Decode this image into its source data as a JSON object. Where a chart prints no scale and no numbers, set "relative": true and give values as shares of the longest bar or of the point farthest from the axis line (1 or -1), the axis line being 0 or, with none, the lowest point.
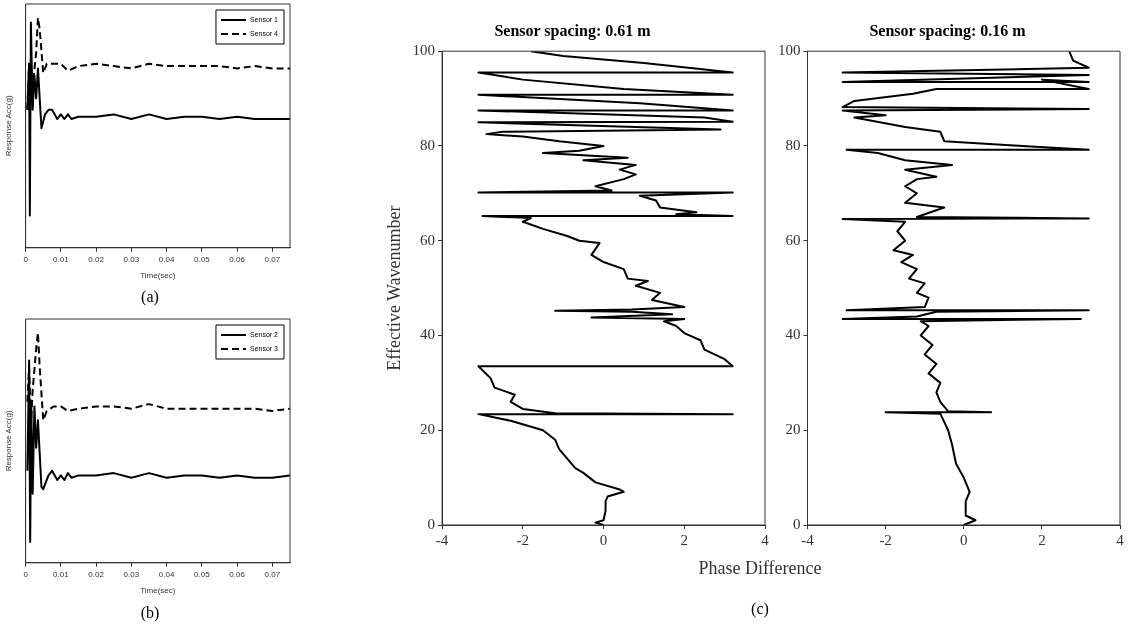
{
  "chart_data": [
    {
      "type": "line",
      "xlabel": "Time(sec)",
      "ylabel": "Response Acc(g)",
      "relative": true,
      "xlim": [
        0,
        0.075
      ],
      "xticks": [
        0,
        0.01,
        0.02,
        0.03,
        0.04,
        0.05,
        0.06,
        0.07
      ],
      "legend": "top right",
      "grid": false,
      "annotations": [
        "(a)"
      ],
      "series": [
        {
          "name": "Sensor 1",
          "color": "#000000",
          "line_style": "solid",
          "x": [
            0.0005,
            0.001,
            0.0012,
            0.0015,
            0.002,
            0.0025,
            0.003,
            0.0035,
            0.0045,
            0.0055,
            0.0065,
            0.0075,
            0.009,
            0.01,
            0.011,
            0.012,
            0.013,
            0.015,
            0.02,
            0.025,
            0.03,
            0.035,
            0.04,
            0.045,
            0.05,
            0.055,
            0.06,
            0.065,
            0.07,
            0.075
          ],
          "values": [
            0.6,
            0.8,
            0.14,
            0.98,
            0.6,
            0.75,
            0.65,
            0.78,
            0.52,
            0.58,
            0.6,
            0.6,
            0.56,
            0.58,
            0.56,
            0.58,
            0.56,
            0.57,
            0.57,
            0.58,
            0.56,
            0.58,
            0.56,
            0.57,
            0.57,
            0.56,
            0.57,
            0.56,
            0.56,
            0.56
          ]
        },
        {
          "name": "Sensor 4",
          "color": "#000000",
          "line_style": "dashed",
          "x": [
            0.0005,
            0.001,
            0.0015,
            0.002,
            0.003,
            0.0035,
            0.004,
            0.005,
            0.006,
            0.008,
            0.01,
            0.012,
            0.015,
            0.02,
            0.025,
            0.03,
            0.035,
            0.04,
            0.045,
            0.05,
            0.055,
            0.06,
            0.065,
            0.07,
            0.075
          ],
          "values": [
            0.6,
            0.8,
            0.65,
            0.7,
            0.85,
            1,
            0.95,
            0.76,
            0.8,
            0.8,
            0.8,
            0.77,
            0.79,
            0.8,
            0.79,
            0.78,
            0.8,
            0.79,
            0.79,
            0.79,
            0.79,
            0.78,
            0.79,
            0.78,
            0.78
          ]
        }
      ]
    },
    {
      "type": "line",
      "xlabel": "Time(sec)",
      "ylabel": "Response Acc(g)",
      "relative": true,
      "xlim": [
        0,
        0.075
      ],
      "xticks": [
        0,
        0.01,
        0.02,
        0.03,
        0.04,
        0.05,
        0.06,
        0.07
      ],
      "legend": "top right",
      "grid": false,
      "annotations": [
        "(b)"
      ],
      "series": [
        {
          "name": "Sensor 2",
          "color": "#000000",
          "line_style": "solid",
          "x": [
            0.0005,
            0.001,
            0.0013,
            0.0016,
            0.002,
            0.0025,
            0.003,
            0.0035,
            0.0045,
            0.005,
            0.0065,
            0.0075,
            0.009,
            0.01,
            0.011,
            0.012,
            0.013,
            0.015,
            0.02,
            0.025,
            0.03,
            0.035,
            0.04,
            0.045,
            0.05,
            0.055,
            0.06,
            0.065,
            0.07,
            0.075
          ],
          "values": [
            0.4,
            0.88,
            0.09,
            0.7,
            0.3,
            0.68,
            0.5,
            0.62,
            0.33,
            0.32,
            0.38,
            0.4,
            0.36,
            0.38,
            0.36,
            0.39,
            0.37,
            0.38,
            0.38,
            0.39,
            0.37,
            0.39,
            0.37,
            0.38,
            0.38,
            0.37,
            0.38,
            0.37,
            0.37,
            0.38
          ]
        },
        {
          "name": "Sensor 3",
          "color": "#000000",
          "line_style": "dashed",
          "x": [
            0.0005,
            0.001,
            0.0015,
            0.002,
            0.003,
            0.0035,
            0.004,
            0.005,
            0.006,
            0.008,
            0.01,
            0.012,
            0.015,
            0.02,
            0.025,
            0.03,
            0.035,
            0.04,
            0.045,
            0.05,
            0.055,
            0.06,
            0.065,
            0.07,
            0.075
          ],
          "values": [
            0.7,
            0.85,
            0.6,
            0.75,
            0.93,
            1,
            0.85,
            0.62,
            0.66,
            0.68,
            0.68,
            0.66,
            0.67,
            0.68,
            0.68,
            0.67,
            0.69,
            0.67,
            0.67,
            0.67,
            0.67,
            0.67,
            0.67,
            0.66,
            0.67
          ]
        }
      ]
    },
    {
      "type": "line",
      "title": "Sensor spacing: 0.61 m",
      "xlabel": "Phase Difference",
      "ylabel": "Effective Wavenumber",
      "xlim": [
        -4,
        4
      ],
      "xticks": [
        -4,
        -2,
        0,
        2,
        4
      ],
      "ylim": [
        0,
        100
      ],
      "yticks": [
        0,
        20,
        40,
        60,
        80,
        100
      ],
      "grid": false,
      "annotations": [
        "(c)"
      ],
      "series": [
        {
          "color": "#000000",
          "x": [
            0,
            -0.2,
            0,
            0.05,
            0.05,
            0.1,
            0.5,
            0.4,
            -0.2,
            -0.5,
            -0.7,
            -0.9,
            -1.1,
            -1.2,
            -1.5,
            -2.3,
            -3.1,
            3.2,
            -1.2,
            -2,
            -2.3,
            -2.2,
            -2.7,
            -2.8,
            -3.1,
            3.2,
            3,
            2.5,
            2.4,
            2.0,
            1.8,
            1.5,
            2,
            -0.3,
            1.7,
            0.7,
            -1.2,
            0.7,
            2.0,
            1.2,
            1.4,
            0.8,
            1.1,
            0.6,
            0.5,
            0,
            -0.3,
            -0.1,
            -0.6,
            -0.9,
            -1.5,
            -2.0,
            -1.8,
            -3.0,
            3.2,
            1.8,
            2.3,
            1.4,
            1.3,
            0.9,
            3.2,
            -3.1,
            0.2,
            -0.2,
            0.5,
            0.8,
            0.4,
            0.8,
            -0.5,
            0.6,
            -1.5,
            -0.6,
            0,
            -1.1,
            -2,
            -2.9,
            -2.5,
            2.9,
            -3.1,
            3.2,
            2.5,
            -3.1,
            3.2,
            1.7,
            0.9,
            -3.1,
            3.2,
            0.5,
            -2,
            -3.1,
            3.2,
            1,
            -1,
            -1.8
          ],
          "values": [
            0,
            0.5,
            1,
            3,
            5,
            6,
            7,
            7.5,
            9,
            11,
            12,
            14,
            16,
            18,
            20,
            22,
            23.4,
            23.4,
            23.6,
            24.5,
            26,
            27.5,
            29,
            31,
            33.5,
            33.5,
            35,
            37,
            39,
            40.5,
            42,
            43,
            43.5,
            43.8,
            44.5,
            45,
            45.2,
            45.5,
            46,
            47.5,
            49,
            50.5,
            51.5,
            52,
            54,
            55.5,
            57,
            59.5,
            60,
            61,
            62.5,
            64,
            64.8,
            65.2,
            65.2,
            65.6,
            66,
            67,
            68.5,
            69.5,
            70.2,
            70.2,
            70.6,
            71.5,
            73,
            74,
            75,
            76,
            77,
            77.5,
            78.5,
            79,
            80,
            81,
            82,
            82.5,
            83,
            83.5,
            85,
            85.1,
            86,
            87.5,
            87.5,
            88.5,
            89,
            90.8,
            90.8,
            92,
            94,
            95.5,
            95.5,
            97.5,
            99,
            100
          ]
        }
      ]
    },
    {
      "type": "line",
      "title": "Sensor spacing: 0.16 m",
      "xlim": [
        -4,
        4
      ],
      "xticks": [
        -4,
        -2,
        0,
        2,
        4
      ],
      "ylim": [
        0,
        100
      ],
      "yticks": [
        0,
        20,
        40,
        60,
        80,
        100
      ],
      "grid": false,
      "series": [
        {
          "color": "#000000",
          "x": [
            0,
            0.3,
            0.05,
            0.05,
            0.15,
            0,
            -0.2,
            -0.3,
            -0.4,
            -0.6,
            -2,
            0.7,
            -0.4,
            -0.6,
            -0.7,
            -0.6,
            -0.9,
            -0.7,
            -1,
            -0.8,
            -1.1,
            -0.9,
            -1.1,
            3,
            -3.1,
            -1.2,
            -0.7,
            3.2,
            -3,
            -1.0,
            -0.9,
            -1.2,
            -1.0,
            -1.4,
            -1.2,
            -1.6,
            -1.3,
            -1.8,
            -1.5,
            -1.7,
            -1.5,
            -3.1,
            3.2,
            -1.2,
            -0.5,
            -1.5,
            -1.2,
            -1.5,
            -1.2,
            -0.7,
            -1.5,
            -0.3,
            -1.5,
            -2.2,
            -3,
            3.2,
            1.5,
            -0.5,
            -0.6,
            -1.5,
            -2.8,
            -2,
            -3.1,
            3.2,
            -3.1,
            -2.8,
            -1.3,
            -0.7,
            3.2,
            2,
            3.2,
            -3.1,
            3.2,
            -3.1,
            3.2,
            2.8,
            2.7
          ],
          "values": [
            0,
            1,
            2,
            5,
            7,
            10,
            13,
            17,
            20,
            23.5,
            23.8,
            23.8,
            24,
            26,
            28,
            30,
            32,
            34,
            36,
            38,
            40,
            42,
            43,
            43.5,
            43.5,
            44,
            45,
            45.3,
            45.3,
            46,
            48,
            49,
            51,
            52,
            54,
            55.5,
            57,
            58,
            60,
            62,
            64,
            64.6,
            64.7,
            65,
            67,
            68,
            70,
            71.5,
            73,
            73.5,
            75,
            76,
            77,
            78.5,
            79.2,
            79.2,
            80,
            81,
            83,
            84,
            86,
            86.5,
            87.5,
            87.8,
            88.2,
            89.5,
            91,
            92,
            92,
            94,
            93.5,
            93.5,
            95,
            95.5,
            96.5,
            98,
            100
          ]
        }
      ]
    }
  ]
}
